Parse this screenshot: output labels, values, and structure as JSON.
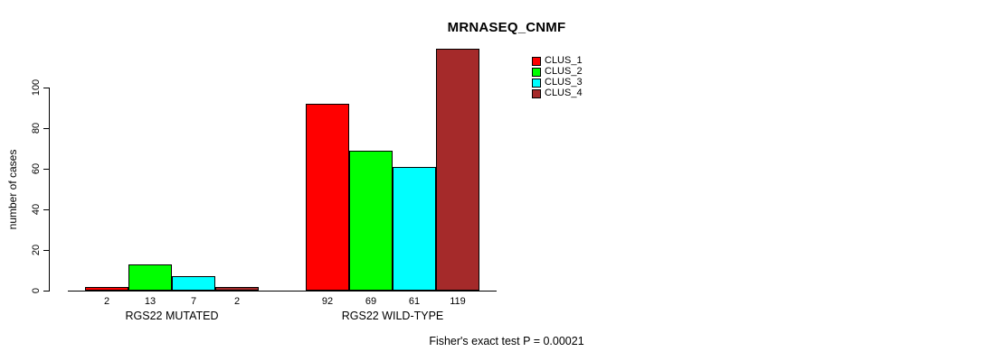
{
  "chart_data": {
    "type": "bar",
    "title": "MRNASEQ_CNMF",
    "ylabel": "number of cases",
    "annotation": "Fisher's exact test P = 0.00021",
    "series_names": [
      "CLUS_1",
      "CLUS_2",
      "CLUS_3",
      "CLUS_4"
    ],
    "series_colors": [
      "#ff0000",
      "#00ff00",
      "#00ffff",
      "#a52a2a"
    ],
    "groups": [
      {
        "label": "RGS22 MUTATED",
        "values": [
          2,
          13,
          7,
          2
        ]
      },
      {
        "label": "RGS22 WILD-TYPE",
        "values": [
          92,
          69,
          61,
          119
        ]
      }
    ],
    "yticks": [
      0,
      20,
      40,
      60,
      80,
      100
    ],
    "ylim": [
      0,
      120
    ],
    "grid": false,
    "legend_position": "top-right"
  }
}
